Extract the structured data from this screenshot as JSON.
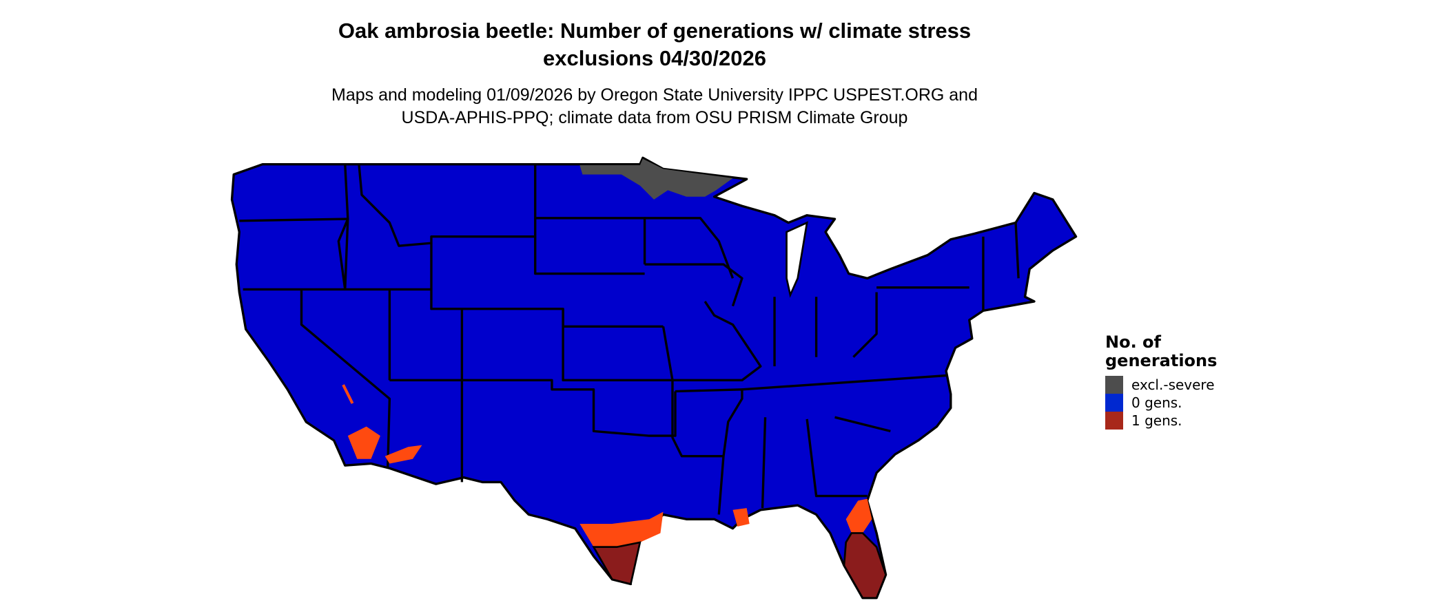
{
  "title": {
    "line1": "Oak ambrosia beetle: Number of generations w/ climate stress",
    "line2": "exclusions 04/30/2026"
  },
  "subtitle": {
    "line1": "Maps and modeling 01/09/2026 by Oregon State University IPPC USPEST.ORG and",
    "line2": "USDA-APHIS-PPQ; climate data from OSU PRISM Climate Group"
  },
  "legend": {
    "title_line1": "No. of",
    "title_line2": "generations",
    "items": [
      {
        "label": "excl.-severe",
        "color": "#4d4d4d"
      },
      {
        "label": "0 gens.",
        "color": "#0028d0"
      },
      {
        "label": "1 gens.",
        "color": "#a8281a"
      }
    ]
  },
  "map_colors": {
    "zero_gens": "#0000cc",
    "one_gen_light": "#ff4a10",
    "one_gen_dark": "#8b1c1c",
    "excluded": "#4d4d4d",
    "border": "#000000"
  }
}
